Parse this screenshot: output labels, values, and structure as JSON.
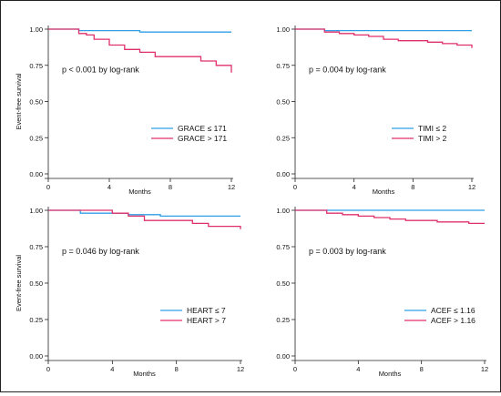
{
  "colors": {
    "series_a": "#2e9fe6",
    "series_b": "#e0306a",
    "axis": "#222222",
    "text": "#111111"
  },
  "chart_data": [
    {
      "type": "line",
      "step": true,
      "ylabel": "Event-free survival",
      "xlabel": "Months",
      "annotation": "p < 0.001 by log-rank",
      "xlim": [
        0,
        12
      ],
      "ylim": [
        0,
        1
      ],
      "xticks": [
        "0",
        "4",
        "8",
        "12"
      ],
      "yticks": [
        "0.00",
        "0.25",
        "0.50",
        "0.75",
        "1.00"
      ],
      "legend_position": "bottom-right",
      "series": [
        {
          "name": "GRACE ≤ 171",
          "x": [
            0,
            2,
            6,
            12
          ],
          "y": [
            1.0,
            0.99,
            0.98,
            0.98
          ]
        },
        {
          "name": "GRACE > 171",
          "x": [
            0,
            2,
            2.5,
            3,
            4,
            5,
            6,
            7,
            9,
            10,
            11,
            11.5,
            12
          ],
          "y": [
            1.0,
            0.97,
            0.96,
            0.93,
            0.89,
            0.86,
            0.84,
            0.81,
            0.81,
            0.78,
            0.75,
            0.75,
            0.7
          ]
        }
      ]
    },
    {
      "type": "line",
      "step": true,
      "ylabel": "",
      "xlabel": "Months",
      "annotation": "p = 0.004 by log-rank",
      "xlim": [
        0,
        12
      ],
      "ylim": [
        0,
        1
      ],
      "xticks": [
        "0",
        "4",
        "8",
        "12"
      ],
      "yticks": [
        "0.00",
        "0.25",
        "0.50",
        "0.75",
        "1.00"
      ],
      "legend_position": "bottom-right",
      "series": [
        {
          "name": "TIMI ≤ 2",
          "x": [
            0,
            2,
            4,
            12
          ],
          "y": [
            1.0,
            0.99,
            0.99,
            0.99
          ]
        },
        {
          "name": "TIMI > 2",
          "x": [
            0,
            2,
            3,
            4,
            5,
            6,
            7,
            9,
            10,
            11,
            12
          ],
          "y": [
            1.0,
            0.98,
            0.97,
            0.96,
            0.95,
            0.93,
            0.92,
            0.91,
            0.9,
            0.89,
            0.87
          ]
        }
      ]
    },
    {
      "type": "line",
      "step": true,
      "ylabel": "Event-free survival",
      "xlabel": "Months",
      "annotation": "p = 0.046 by log-rank",
      "xlim": [
        0,
        12
      ],
      "ylim": [
        0,
        1
      ],
      "xticks": [
        "0",
        "4",
        "8",
        "12"
      ],
      "yticks": [
        "0.00",
        "0.25",
        "0.50",
        "0.75",
        "1.00"
      ],
      "legend_position": "bottom-right",
      "series": [
        {
          "name": "HEART ≤ 7",
          "x": [
            0,
            2,
            3,
            5,
            7,
            12
          ],
          "y": [
            1.0,
            0.98,
            0.98,
            0.97,
            0.96,
            0.96
          ]
        },
        {
          "name": "HEART > 7",
          "x": [
            0,
            4,
            5,
            6,
            7,
            9,
            10,
            11,
            12
          ],
          "y": [
            1.0,
            0.98,
            0.96,
            0.93,
            0.93,
            0.91,
            0.89,
            0.89,
            0.87
          ]
        }
      ]
    },
    {
      "type": "line",
      "step": true,
      "ylabel": "",
      "xlabel": "Months",
      "annotation": "p = 0.003 by log-rank",
      "xlim": [
        0,
        12
      ],
      "ylim": [
        0,
        1
      ],
      "xticks": [
        "0",
        "4",
        "8",
        "12"
      ],
      "yticks": [
        "0.00",
        "0.25",
        "0.50",
        "0.75",
        "1.00"
      ],
      "legend_position": "bottom-right",
      "series": [
        {
          "name": "ACEF ≤ 1.16",
          "x": [
            0,
            12
          ],
          "y": [
            1.0,
            1.0
          ]
        },
        {
          "name": "ACEF > 1.16",
          "x": [
            0,
            2,
            3,
            4,
            5,
            6,
            7,
            9,
            10,
            11,
            12
          ],
          "y": [
            1.0,
            0.98,
            0.97,
            0.96,
            0.95,
            0.94,
            0.93,
            0.92,
            0.92,
            0.91,
            0.91
          ]
        }
      ]
    }
  ]
}
